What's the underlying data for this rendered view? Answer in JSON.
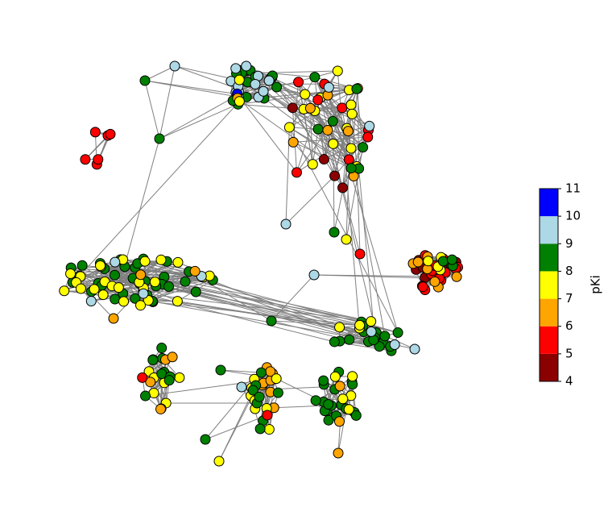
{
  "chart_data": {
    "type": "network",
    "node_color_by": "pKi",
    "colorbar": {
      "label": "pKi",
      "lim": [
        4,
        11
      ],
      "ticks": [
        4,
        5,
        6,
        7,
        8,
        9,
        10,
        11
      ],
      "bounds": [
        4,
        5,
        6,
        7,
        8,
        9,
        10,
        11
      ],
      "colors": [
        "#8b0000",
        "#ff0000",
        "#ffa500",
        "#ffff00",
        "#008000",
        "#add8e6",
        "#0000ff"
      ]
    },
    "clusters": [
      {
        "values": [
          8.5,
          8.5,
          8.5,
          8.5,
          8.5,
          8.5,
          8.5,
          8.5,
          8.5,
          8.5,
          8.5,
          8.5,
          8.5,
          8.5,
          8.5,
          8.5,
          9.5,
          9.5,
          9.5,
          9.5,
          9.5,
          9.5,
          9.5,
          9.5,
          9.5,
          9.5,
          9.5,
          9.5,
          10.5,
          6.5,
          7.5,
          7.5
        ]
      },
      {
        "values": [
          7.5,
          7.5,
          7.5,
          7.5,
          7.5,
          7.5,
          7.5,
          7.5,
          7.5,
          7.5,
          7.5,
          7.5,
          7.5,
          7.5,
          6.5,
          6.5,
          6.5,
          6.5,
          6.5,
          6.5,
          6.5,
          6.5,
          5.5,
          5.5,
          5.5,
          5.5,
          5.5,
          5.5,
          5.5,
          5.5,
          4.5,
          4.5,
          4.5,
          4.5,
          8.5,
          8.5,
          8.5,
          8.5,
          8.5,
          8.5,
          8.5,
          9.5,
          9.5
        ]
      },
      {
        "values": [
          5.5,
          5.5,
          5.5,
          5.5,
          5.5,
          5.5
        ]
      },
      {
        "values": [
          8.5,
          8.5,
          8.5,
          8.5,
          8.5,
          8.5,
          8.5,
          8.5,
          8.5,
          8.5,
          8.5,
          8.5,
          8.5,
          8.5,
          8.5,
          8.5,
          8.5,
          8.5,
          8.5,
          8.5,
          8.5,
          8.5,
          8.5,
          8.5,
          8.5,
          8.5,
          8.5,
          8.5,
          8.5,
          8.5,
          8.5,
          8.5,
          8.5,
          8.5,
          8.5,
          7.5,
          7.5,
          7.5,
          7.5,
          7.5,
          7.5,
          7.5,
          7.5,
          7.5,
          7.5,
          7.5,
          7.5,
          7.5,
          7.5,
          7.5,
          7.5,
          7.5,
          7.5,
          7.5,
          7.5,
          7.5,
          7.5,
          7.5,
          7.5,
          7.5,
          9.5,
          9.5,
          9.5,
          9.5,
          6.5,
          6.5
        ]
      },
      {
        "values": [
          4.5,
          4.5,
          4.5,
          4.5,
          4.5,
          4.5,
          4.5,
          4.5,
          4.5,
          4.5,
          5.5,
          5.5,
          5.5,
          5.5,
          5.5,
          5.5,
          5.5,
          5.5,
          5.5,
          5.5,
          5.5,
          5.5,
          6.5,
          6.5,
          6.5,
          6.5,
          6.5,
          6.5,
          6.5,
          6.5,
          7.5,
          7.5,
          7.5,
          7.5,
          8.5,
          8.5,
          8.5
        ]
      },
      {
        "values": [
          8.5,
          8.5,
          8.5,
          8.5,
          8.5,
          8.5,
          8.5,
          8.5,
          8.5,
          8.5,
          8.5,
          8.5,
          8.5,
          8.5,
          8.5,
          8.5,
          7.5,
          7.5,
          7.5,
          7.5,
          9.5,
          9.5
        ]
      },
      {
        "values": [
          7.5,
          7.5,
          7.5,
          7.5,
          7.5,
          7.5,
          7.5,
          7.5,
          8.5,
          8.5,
          8.5,
          8.5,
          8.5,
          8.5,
          8.5,
          8.5,
          6.5,
          6.5,
          6.5,
          6.5,
          6.5,
          5.5
        ]
      },
      {
        "values": [
          6.5,
          6.5,
          6.5,
          6.5,
          6.5,
          6.5,
          6.5,
          6.5,
          6.5,
          7.5,
          7.5,
          7.5,
          7.5,
          7.5,
          7.5,
          7.5,
          7.5,
          8.5,
          8.5,
          8.5,
          8.5,
          8.5,
          8.5,
          8.5,
          8.5,
          5.5
        ]
      },
      {
        "values": [
          8.5,
          8.5,
          8.5,
          8.5,
          8.5,
          8.5,
          8.5,
          8.5,
          8.5,
          8.5,
          8.5,
          8.5,
          8.5,
          8.5,
          8.5,
          8.5,
          8.5,
          8.5,
          7.5,
          7.5,
          7.5,
          7.5,
          7.5,
          6.5,
          6.5
        ]
      },
      {
        "values": [
          9.5,
          8.5,
          8.5,
          9.5,
          8.5,
          7.5,
          5.5,
          9.5,
          8.5,
          6.5,
          8.5,
          9.5,
          7.5,
          8.5,
          6.5,
          9.5
        ]
      }
    ]
  }
}
